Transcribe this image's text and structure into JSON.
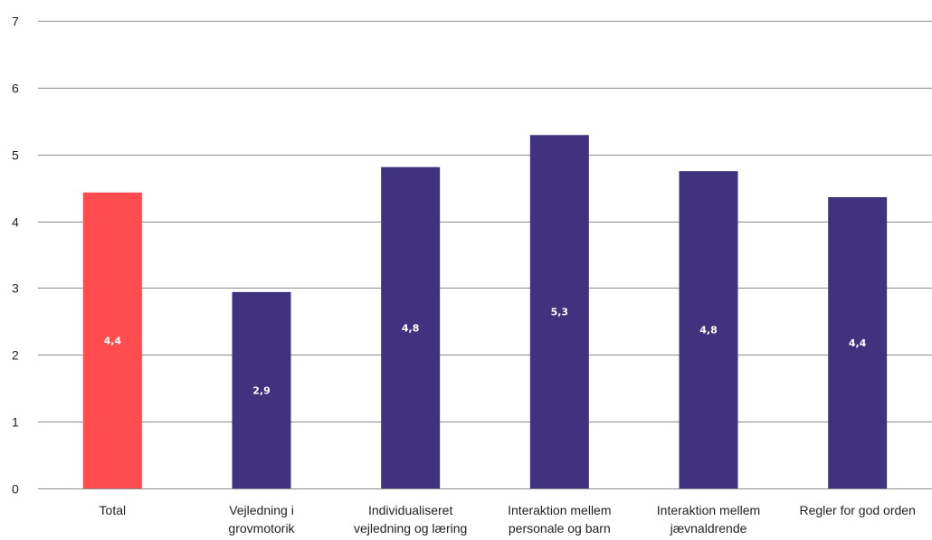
{
  "chart_data": {
    "type": "bar",
    "categories": [
      [
        "Total"
      ],
      [
        "Vejledning i",
        "grovmotorik"
      ],
      [
        "Individualiseret",
        "vejledning og læring"
      ],
      [
        "Interaktion mellem",
        "personale og barn"
      ],
      [
        "Interaktion mellem",
        "jævnaldrende"
      ],
      [
        "Regler for god orden"
      ]
    ],
    "values": [
      4.43,
      2.94,
      4.81,
      5.29,
      4.75,
      4.36
    ],
    "value_labels": [
      "4,4",
      "2,9",
      "4,8",
      "5,3",
      "4,8",
      "4,4"
    ],
    "bar_colors": [
      "#ff4c4f",
      "#40327e",
      "#40327e",
      "#40327e",
      "#40327e",
      "#40327e"
    ],
    "ylim": [
      0,
      7
    ],
    "yticks": [
      "0",
      "1",
      "2",
      "3",
      "4",
      "5",
      "6",
      "7"
    ],
    "grid": true,
    "gridline_color": "#8c8c8c",
    "title": "",
    "xlabel": "",
    "ylabel": ""
  }
}
